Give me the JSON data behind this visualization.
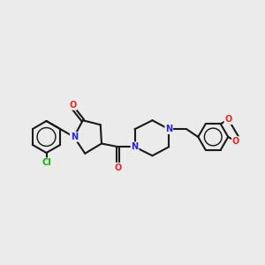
{
  "background_color": "#ebebeb",
  "bond_color": "#1a1a1a",
  "n_color": "#2222ee",
  "o_color": "#ee2222",
  "cl_color": "#00bb00",
  "line_width": 1.5,
  "fig_size": [
    3.0,
    3.0
  ],
  "dpi": 100,
  "xlim": [
    0,
    12
  ],
  "ylim": [
    2,
    9
  ]
}
